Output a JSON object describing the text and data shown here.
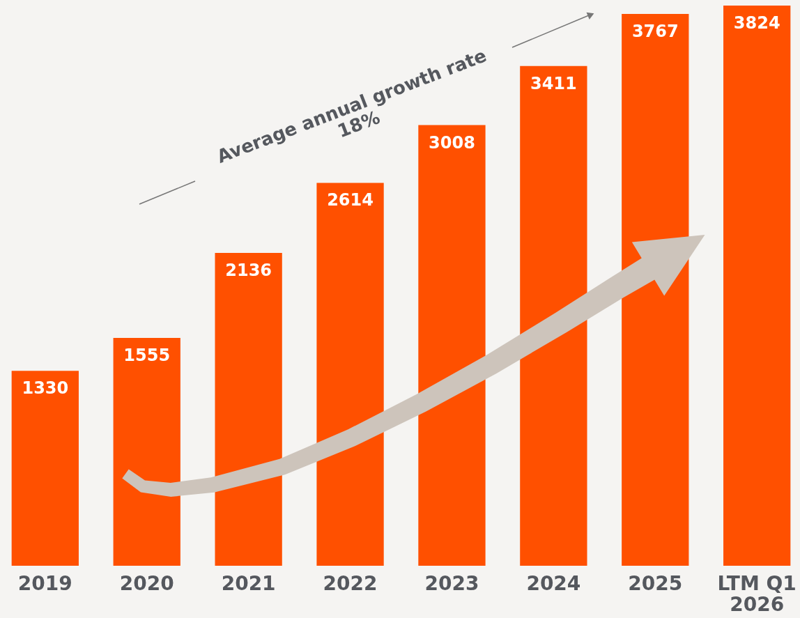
{
  "chart_data": {
    "type": "bar",
    "categories": [
      "2019",
      "2020",
      "2021",
      "2022",
      "2023",
      "2024",
      "2025",
      "LTM Q1\n2026"
    ],
    "values": [
      1330,
      1555,
      2136,
      2614,
      3008,
      3411,
      3767,
      3824
    ],
    "color": "#ff5000",
    "data_labels": true,
    "annotations": [
      "Average annual growth rate\n18%"
    ]
  }
}
